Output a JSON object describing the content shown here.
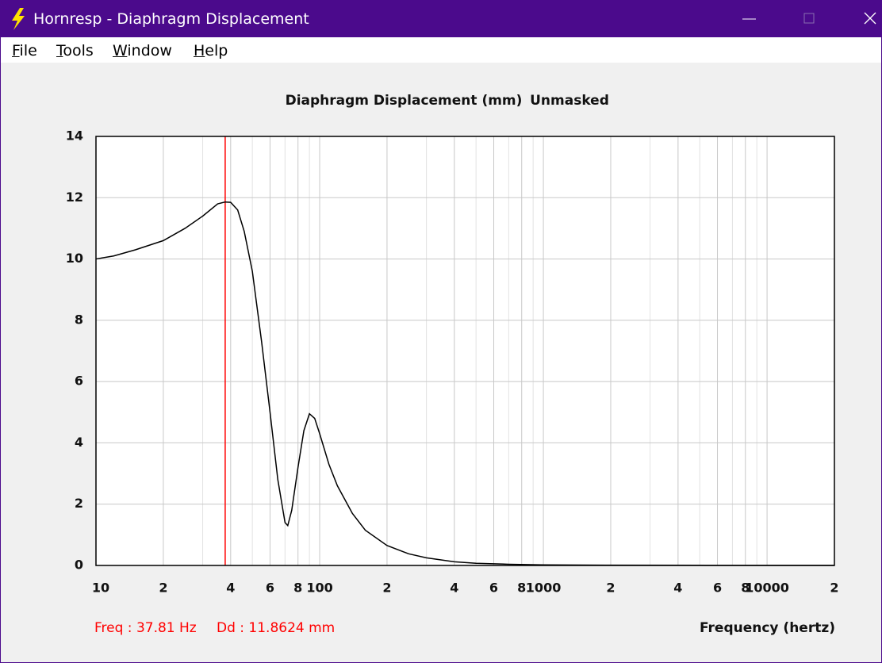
{
  "window": {
    "title": "Hornresp - Diaphragm Displacement",
    "menu": [
      "File",
      "Tools",
      "Window",
      "Help"
    ]
  },
  "chart_data": {
    "type": "line",
    "title": "Diaphragm Displacement (mm)",
    "subtitle": "Unmasked",
    "xlabel": "Frequency (hertz)",
    "log_x": true,
    "grid": true,
    "color": "#000000",
    "x": [
      10,
      12,
      15,
      20,
      25,
      30,
      35,
      37.81,
      40,
      43,
      46,
      50,
      55,
      60,
      65,
      70,
      72,
      75,
      80,
      85,
      90,
      95,
      100,
      110,
      120,
      140,
      160,
      200,
      250,
      300,
      400,
      500,
      700,
      1000,
      2000,
      5000,
      20000
    ],
    "values": [
      10.0,
      10.1,
      10.3,
      10.6,
      11.0,
      11.4,
      11.8,
      11.86,
      11.85,
      11.6,
      10.9,
      9.6,
      7.3,
      5.0,
      2.8,
      1.4,
      1.3,
      1.8,
      3.2,
      4.4,
      4.95,
      4.8,
      4.3,
      3.3,
      2.6,
      1.7,
      1.15,
      0.65,
      0.38,
      0.25,
      0.12,
      0.07,
      0.04,
      0.02,
      0.01,
      0.005,
      0.002
    ],
    "xlim": [
      10,
      20000
    ],
    "ylim": [
      0,
      14
    ],
    "yticks": [
      0,
      2,
      4,
      6,
      8,
      10,
      12,
      14
    ],
    "xticks": [
      10,
      {
        "value": 20,
        "label": "2"
      },
      {
        "value": 40,
        "label": "4"
      },
      {
        "value": 60,
        "label": "6"
      },
      {
        "value": 80,
        "label": "8"
      },
      100,
      {
        "value": 200,
        "label": "2"
      },
      {
        "value": 400,
        "label": "4"
      },
      {
        "value": 600,
        "label": "6"
      },
      {
        "value": 800,
        "label": "8"
      },
      1000,
      {
        "value": 2000,
        "label": "2"
      },
      {
        "value": 4000,
        "label": "4"
      },
      {
        "value": 6000,
        "label": "6"
      },
      {
        "value": 8000,
        "label": "8"
      },
      10000,
      {
        "value": 20000,
        "label": "2"
      }
    ],
    "minor_xticks": [
      30,
      50,
      70,
      90,
      300,
      500,
      700,
      900,
      3000,
      5000,
      7000,
      9000
    ],
    "cursor": {
      "x": 37.81,
      "x_label": "Freq : 37.81 Hz",
      "y": 11.8624,
      "y_label": "Dd : 11.8624 mm",
      "color": "#ff0000"
    }
  }
}
